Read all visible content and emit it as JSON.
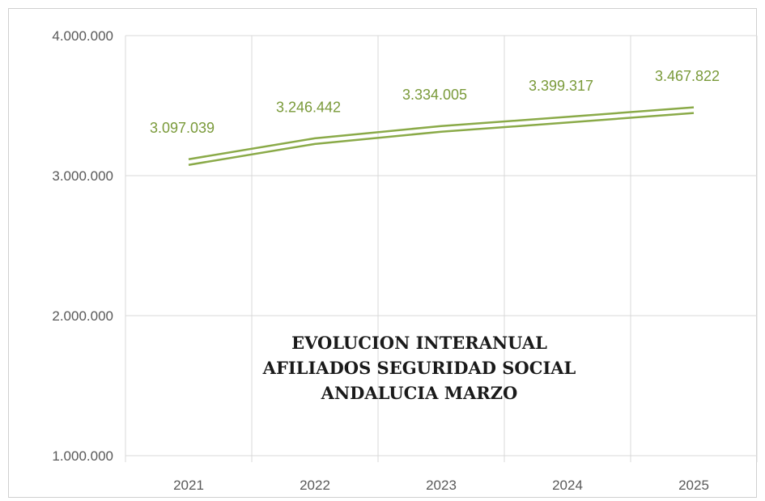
{
  "chart_data": {
    "type": "line",
    "title_lines": [
      "EVOLUCION INTERANUAL",
      "AFILIADOS SEGURIDAD SOCIAL",
      "ANDALUCIA MARZO"
    ],
    "categories": [
      "2021",
      "2022",
      "2023",
      "2024",
      "2025"
    ],
    "values": [
      3097039,
      3246442,
      3334005,
      3399317,
      3467822
    ],
    "value_labels": [
      "3.097.039",
      "3.246.442",
      "3.334.005",
      "3.399.317",
      "3.467.822"
    ],
    "ylim": [
      1000000,
      4000000
    ],
    "yticks": [
      1000000,
      2000000,
      3000000,
      4000000
    ],
    "ytick_labels": [
      "1.000.000",
      "2.000.000",
      "3.000.000",
      "4.000.000"
    ],
    "xlabel": "",
    "ylabel": "",
    "grid": true,
    "line_color": "#8aaa48",
    "legend": "none"
  }
}
